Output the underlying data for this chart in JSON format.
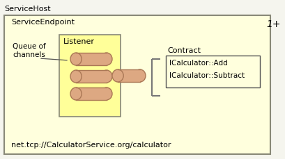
{
  "bg_color": "#f5f5ee",
  "outer_border_color": "#888877",
  "service_host_label": "ServiceHost",
  "endpoint_box_color": "#ffffdd",
  "endpoint_box_border": "#888877",
  "endpoint_label": "ServiceEndpoint",
  "queue_label": "Queue of\nchannels",
  "listener_box_color": "#ffff99",
  "listener_box_border": "#888877",
  "listener_label": "Listener",
  "cylinder_face_color": "#dda882",
  "cylinder_edge_color": "#aa7755",
  "bracket_color": "#777777",
  "contract_label": "Contract",
  "contract_box_border": "#555555",
  "contract_items": [
    "ICalculator::Add",
    "ICalculator::Subtract"
  ],
  "url_label": "net.tcp://CalculatorService.org/calculator",
  "multiplicity_label": "1+",
  "figw": 4.09,
  "figh": 2.29,
  "dpi": 100
}
